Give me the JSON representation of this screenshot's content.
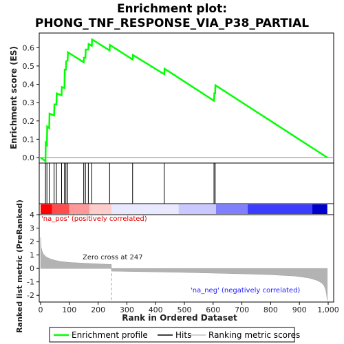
{
  "chart_data": {
    "type": "line",
    "title_line1": "Enrichment plot:",
    "title_line2": "PHONG_TNF_RESPONSE_VIA_P38_PARTIAL",
    "es_panel": {
      "ylabel": "Enrichment score (ES)",
      "ylim": [
        -0.03,
        0.68
      ],
      "yticks": [
        "0.0",
        "0.1",
        "0.2",
        "0.3",
        "0.4",
        "0.5",
        "0.6"
      ],
      "ytick_values": [
        0.0,
        0.1,
        0.2,
        0.3,
        0.4,
        0.5,
        0.6
      ],
      "series": [
        {
          "name": "Enrichment profile",
          "color": "#00ff00",
          "x": [
            0,
            17,
            18,
            22,
            23,
            30,
            31,
            47,
            48,
            55,
            56,
            73,
            74,
            83,
            84,
            88,
            89,
            94,
            95,
            150,
            151,
            156,
            157,
            166,
            167,
            178,
            179,
            240,
            241,
            320,
            321,
            430,
            431,
            603,
            604,
            607,
            608,
            997
          ],
          "y": [
            0.0,
            -0.02,
            0.08,
            0.07,
            0.17,
            0.16,
            0.24,
            0.23,
            0.29,
            0.29,
            0.35,
            0.34,
            0.385,
            0.38,
            0.48,
            0.48,
            0.525,
            0.53,
            0.575,
            0.52,
            0.545,
            0.545,
            0.59,
            0.59,
            0.62,
            0.61,
            0.645,
            0.585,
            0.615,
            0.535,
            0.56,
            0.455,
            0.485,
            0.31,
            0.35,
            0.35,
            0.395,
            0.0
          ]
        }
      ]
    },
    "hits": {
      "name": "Hits",
      "positions": [
        17,
        22,
        30,
        47,
        55,
        73,
        83,
        88,
        94,
        150,
        156,
        166,
        178,
        240,
        320,
        430,
        603,
        607
      ]
    },
    "heatmap_bar": {
      "label_pos": "'na_pos' (positively correlated)",
      "label_neg": "'na_neg' (negatively correlated)",
      "colors": [
        "#ff0000",
        "#ff4d4d",
        "#ff9999",
        "#ffcccc",
        "#e8e8ff",
        "#c9c9ff",
        "#8080ff",
        "#3d3dff",
        "#0000cc"
      ],
      "stops": [
        0,
        40,
        100,
        170,
        247,
        480,
        610,
        720,
        945,
        997
      ]
    },
    "rank_panel": {
      "ylabel": "Ranked list metric (PreRanked)",
      "xlabel": "Rank in Dataset",
      "xlabel_full": "Rank in Ordered Dataset",
      "ylim": [
        -2.5,
        4.0
      ],
      "yticks": [
        "4",
        "3",
        "2",
        "1",
        "0",
        "-1",
        "-2"
      ],
      "ytick_values": [
        4,
        3,
        2,
        1,
        0,
        -1,
        -2
      ],
      "xlim": [
        0,
        1000
      ],
      "xticks": [
        "0",
        "100",
        "200",
        "300",
        "400",
        "500",
        "600",
        "700",
        "800",
        "900",
        "1,000"
      ],
      "xtick_values": [
        0,
        100,
        200,
        300,
        400,
        500,
        600,
        700,
        800,
        900,
        1000
      ],
      "zero_cross_label": "Zero cross at 247",
      "zero_cross": 247,
      "n_genes": 997,
      "series": {
        "name": "Ranking metric scores",
        "color": "#b3b3b3",
        "x": [
          0,
          2,
          5,
          10,
          20,
          35,
          50,
          70,
          100,
          140,
          180,
          220,
          246,
          247,
          300,
          400,
          500,
          600,
          700,
          800,
          880,
          930,
          960,
          975,
          985,
          990,
          994,
          997
        ],
        "y": [
          2.3,
          1.6,
          1.3,
          1.05,
          0.85,
          0.7,
          0.6,
          0.52,
          0.45,
          0.4,
          0.36,
          0.32,
          0.3,
          -0.2,
          -0.22,
          -0.26,
          -0.3,
          -0.35,
          -0.4,
          -0.47,
          -0.56,
          -0.7,
          -0.88,
          -1.05,
          -1.25,
          -1.5,
          -1.9,
          -2.4
        ]
      }
    },
    "legend": [
      {
        "label": "Enrichment profile",
        "color": "#00ff00"
      },
      {
        "label": "Hits",
        "color": "#000000"
      },
      {
        "label": "Ranking metric scores",
        "color": "#c0c0c0"
      }
    ]
  }
}
